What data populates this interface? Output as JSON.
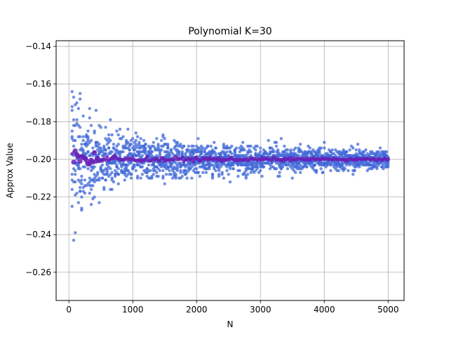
{
  "chart_data": {
    "type": "scatter",
    "title": "Polynomial K=30",
    "xlabel": "N",
    "ylabel": "Approx Value",
    "xlim": [
      -200,
      5250
    ],
    "ylim": [
      -0.275,
      -0.137
    ],
    "xticks": [
      0,
      1000,
      2000,
      3000,
      4000,
      5000
    ],
    "xtick_labels": [
      "0",
      "1000",
      "2000",
      "3000",
      "4000",
      "5000"
    ],
    "yticks": [
      -0.26,
      -0.24,
      -0.22,
      -0.2,
      -0.18,
      -0.16,
      -0.14
    ],
    "ytick_labels": [
      "−0.26",
      "−0.24",
      "−0.22",
      "−0.20",
      "−0.18",
      "−0.16",
      "−0.14"
    ],
    "grid": true,
    "samples": {
      "n_range": [
        50,
        5000
      ],
      "n_step": 25,
      "points_per_n": 10,
      "center": -0.2,
      "spread_at_n50": 0.065,
      "color": "#4169d8"
    },
    "mean_series": {
      "center": -0.2,
      "color": "#6a1fb5",
      "points": [
        [
          75,
          -0.2015
        ],
        [
          100,
          -0.1955
        ],
        [
          125,
          -0.1975
        ],
        [
          150,
          -0.1985
        ],
        [
          175,
          -0.201
        ],
        [
          200,
          -0.1985
        ],
        [
          225,
          -0.199
        ],
        [
          250,
          -0.1995
        ],
        [
          275,
          -0.2005
        ],
        [
          300,
          -0.2025
        ],
        [
          325,
          -0.202
        ],
        [
          350,
          -0.2005
        ],
        [
          375,
          -0.2015
        ],
        [
          400,
          -0.1965
        ],
        [
          425,
          -0.201
        ],
        [
          450,
          -0.1995
        ],
        [
          700,
          -0.199
        ],
        [
          1500,
          -0.2005
        ],
        [
          2200,
          -0.1995
        ],
        [
          2400,
          -0.2005
        ],
        [
          3350,
          -0.2005
        ],
        [
          3500,
          -0.1995
        ],
        [
          4350,
          -0.2005
        ],
        [
          4500,
          -0.2
        ]
      ]
    }
  }
}
